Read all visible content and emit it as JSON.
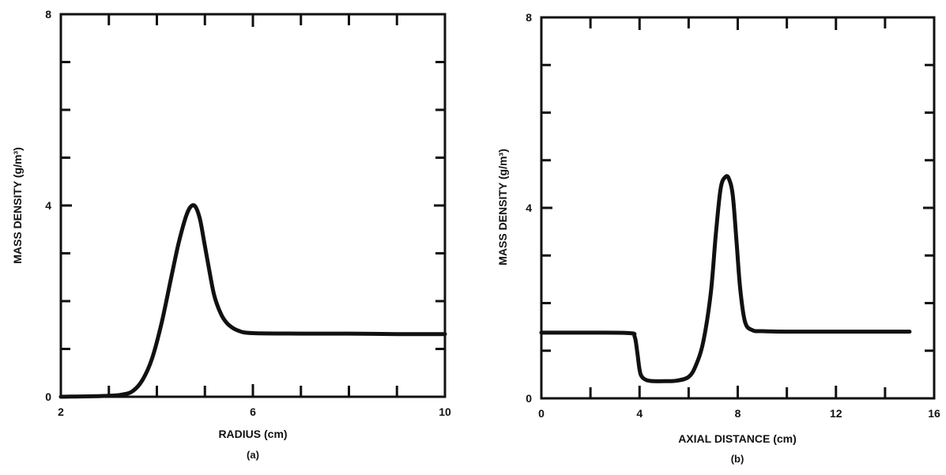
{
  "chart_data": [
    {
      "type": "line",
      "panel_label": "(a)",
      "xlabel": "RADIUS  (cm)",
      "ylabel": "MASS DENSITY (g/m³)",
      "xlim": [
        2,
        10
      ],
      "ylim": [
        0,
        8
      ],
      "x_ticks": [
        2,
        6,
        10
      ],
      "y_ticks": [
        0,
        4,
        8
      ],
      "x_tick_labels": [
        "2",
        "6",
        "10"
      ],
      "y_tick_labels": [
        "0",
        "4",
        "8"
      ],
      "x_minor_step": 1,
      "y_minor_step": 1,
      "grid": false,
      "series": [
        {
          "x": [
            2.0,
            3.0,
            3.3,
            3.5,
            3.7,
            3.9,
            4.1,
            4.3,
            4.45,
            4.6,
            4.7,
            4.8,
            4.9,
            5.0,
            5.1,
            5.2,
            5.35,
            5.5,
            5.7,
            6.0,
            7.0,
            8.0,
            9.0,
            10.0
          ],
          "y": [
            0.0,
            0.02,
            0.05,
            0.12,
            0.35,
            0.8,
            1.55,
            2.5,
            3.2,
            3.75,
            3.97,
            3.98,
            3.7,
            3.15,
            2.6,
            2.1,
            1.7,
            1.5,
            1.38,
            1.33,
            1.32,
            1.32,
            1.31,
            1.31
          ]
        }
      ]
    },
    {
      "type": "line",
      "panel_label": "(b)",
      "xlabel": "AXIAL DISTANCE (cm)",
      "ylabel": "MASS DENSITY (g/m³)",
      "xlim": [
        0,
        16
      ],
      "ylim": [
        0,
        8
      ],
      "x_ticks": [
        0,
        4,
        8,
        12,
        16
      ],
      "y_ticks": [
        0,
        4,
        8
      ],
      "x_tick_labels": [
        "0",
        "4",
        "8",
        "12",
        "16"
      ],
      "y_tick_labels": [
        "0",
        "4",
        "8"
      ],
      "x_minor_step": 2,
      "y_minor_step": 1,
      "grid": false,
      "series": [
        {
          "x": [
            0.0,
            2.0,
            3.6,
            3.8,
            3.9,
            4.0,
            4.1,
            4.3,
            4.6,
            5.0,
            5.5,
            6.0,
            6.3,
            6.6,
            6.9,
            7.1,
            7.3,
            7.5,
            7.65,
            7.8,
            7.95,
            8.1,
            8.3,
            8.6,
            9.0,
            10.0,
            12.0,
            14.0,
            15.0
          ],
          "y": [
            1.38,
            1.38,
            1.37,
            1.3,
            1.0,
            0.6,
            0.45,
            0.38,
            0.36,
            0.36,
            0.37,
            0.45,
            0.7,
            1.2,
            2.2,
            3.4,
            4.4,
            4.65,
            4.6,
            4.25,
            3.3,
            2.3,
            1.6,
            1.43,
            1.41,
            1.4,
            1.4,
            1.4,
            1.4
          ]
        }
      ]
    }
  ]
}
